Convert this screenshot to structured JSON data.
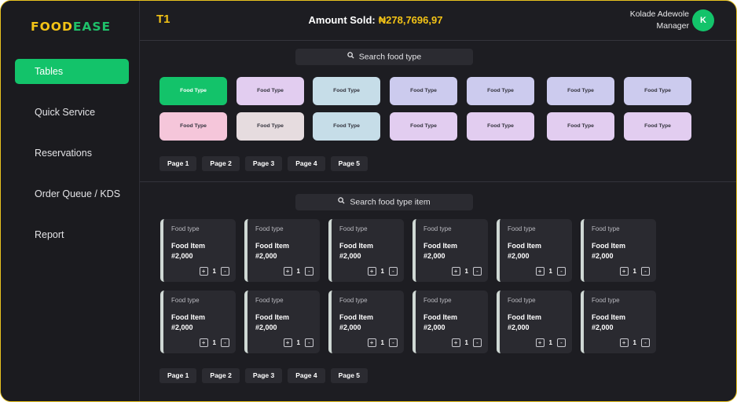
{
  "brand": {
    "part1": "FOOD",
    "part2": "EASE"
  },
  "sidebar": {
    "items": [
      {
        "label": "Tables",
        "active": true
      },
      {
        "label": "Quick Service",
        "active": false
      },
      {
        "label": "Reservations",
        "active": false
      },
      {
        "label": "Order Queue / KDS",
        "active": false
      },
      {
        "label": "Report",
        "active": false
      }
    ]
  },
  "header": {
    "table": "T1",
    "amount_label": "Amount Sold:",
    "amount_value": "₦278,7696,97",
    "user_name": "Kolade Adewole",
    "user_role": "Manager",
    "avatar_initial": "K"
  },
  "food_types": {
    "search_placeholder": "Search food type",
    "rows": [
      [
        {
          "label": "Food Type",
          "color": "#13c36a"
        },
        {
          "label": "Food Type",
          "color": "#e2cdf0"
        },
        {
          "label": "Food Type",
          "color": "#c6dde8"
        },
        {
          "label": "Food Type",
          "color": "#cccbee"
        },
        {
          "label": "Food Type",
          "color": "#cccbee"
        },
        {
          "label": "Food Type",
          "color": "#cccbee"
        },
        {
          "label": "Food Type",
          "color": "#cccbee"
        }
      ],
      [
        {
          "label": "Food Type",
          "color": "#f5c6da"
        },
        {
          "label": "Food Type",
          "color": "#e6dcdf"
        },
        {
          "label": "Food Type",
          "color": "#c6dde8"
        },
        {
          "label": "Food Type",
          "color": "#e2cdf0"
        },
        {
          "label": "Food Type",
          "color": "#e2cdf0"
        },
        {
          "label": "Food Type",
          "color": "#e2cdf0"
        },
        {
          "label": "Food Type",
          "color": "#e2cdf0"
        }
      ]
    ],
    "pages": [
      "Page 1",
      "Page 2",
      "Page 3",
      "Page 4",
      "Page 5"
    ]
  },
  "food_items": {
    "search_placeholder": "Search food type item",
    "rows": [
      [
        {
          "type": "Food type",
          "name": "Food Item",
          "price": "#2,000",
          "qty": "1"
        },
        {
          "type": "Food type",
          "name": "Food Item",
          "price": "#2,000",
          "qty": "1"
        },
        {
          "type": "Food type",
          "name": "Food Item",
          "price": "#2,000",
          "qty": "1"
        },
        {
          "type": "Food type",
          "name": "Food Item",
          "price": "#2,000",
          "qty": "1"
        },
        {
          "type": "Food type",
          "name": "Food Item",
          "price": "#2,000",
          "qty": "1"
        },
        {
          "type": "Food type",
          "name": "Food Item",
          "price": "#2,000",
          "qty": "1"
        }
      ],
      [
        {
          "type": "Food type",
          "name": "Food Item",
          "price": "#2,000",
          "qty": "1"
        },
        {
          "type": "Food type",
          "name": "Food Item",
          "price": "#2,000",
          "qty": "1"
        },
        {
          "type": "Food type",
          "name": "Food Item",
          "price": "#2,000",
          "qty": "1"
        },
        {
          "type": "Food type",
          "name": "Food Item",
          "price": "#2,000",
          "qty": "1"
        },
        {
          "type": "Food type",
          "name": "Food Item",
          "price": "#2,000",
          "qty": "1"
        },
        {
          "type": "Food type",
          "name": "Food Item",
          "price": "#2,000",
          "qty": "1"
        }
      ]
    ],
    "stepper": {
      "plus": "+",
      "minus": "-"
    },
    "pages": [
      "Page 1",
      "Page 2",
      "Page 3",
      "Page 4",
      "Page 5"
    ]
  }
}
